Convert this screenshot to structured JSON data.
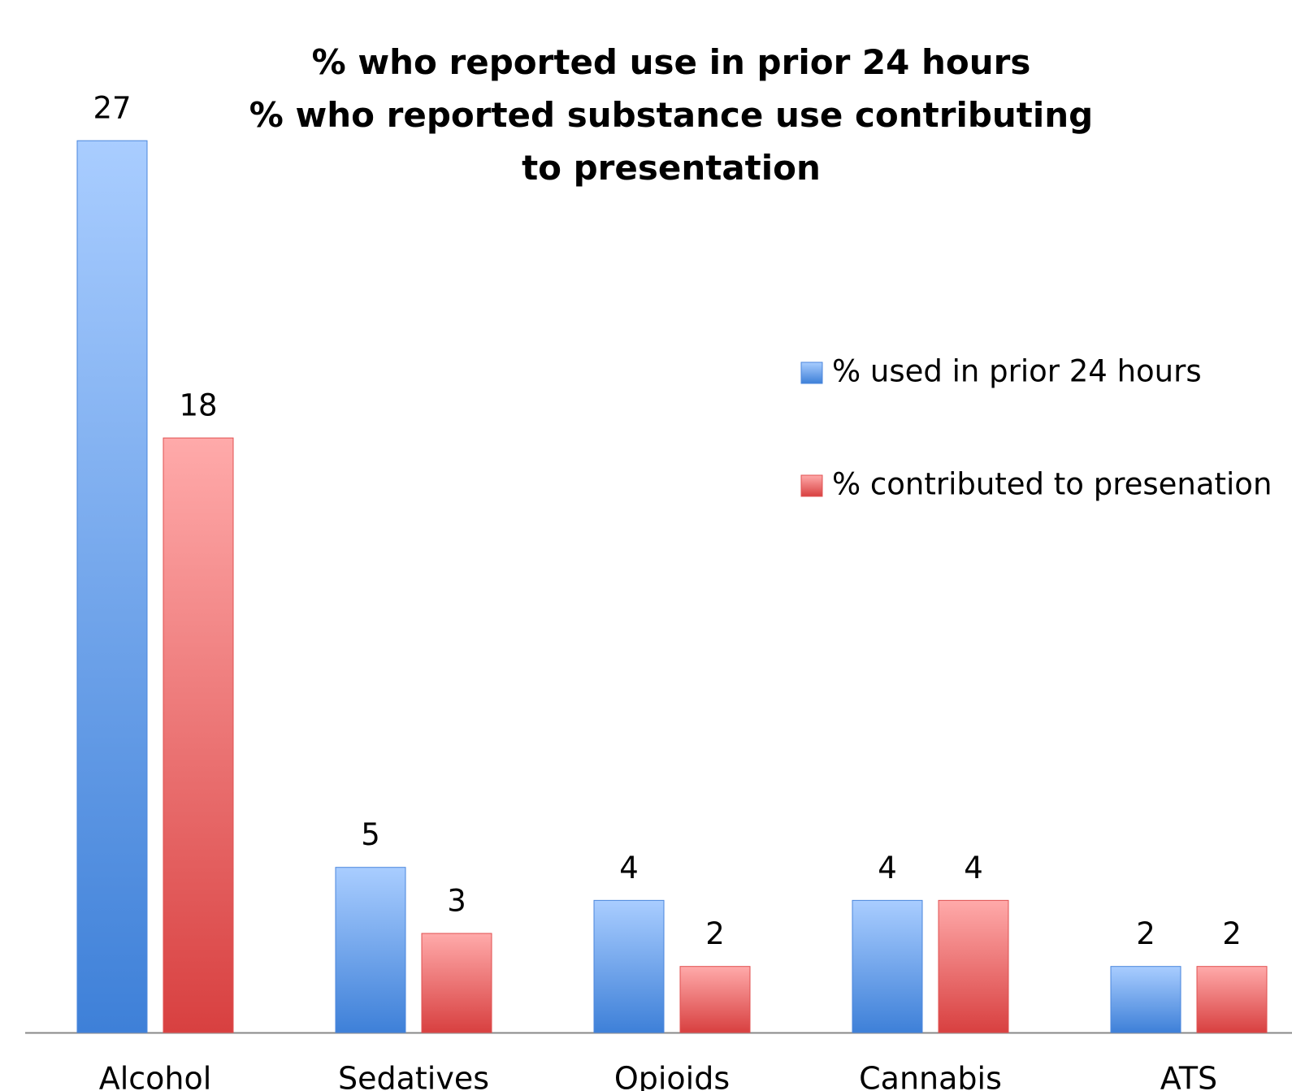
{
  "chart_data": {
    "type": "bar",
    "title": [
      "% who reported use in prior 24 hours",
      "% who reported substance use contributing to presentation"
    ],
    "categories": [
      "Alcohol",
      "Sedatives",
      "Opioids",
      "Cannabis",
      "ATS"
    ],
    "series": [
      {
        "name": "% used in prior 24 hours",
        "color": "#4a86dc",
        "values": [
          27,
          5,
          4,
          4,
          2
        ]
      },
      {
        "name": "% contributed to presenation",
        "color": "#e05050",
        "values": [
          18,
          3,
          2,
          4,
          2
        ]
      }
    ],
    "legend": "right"
  }
}
